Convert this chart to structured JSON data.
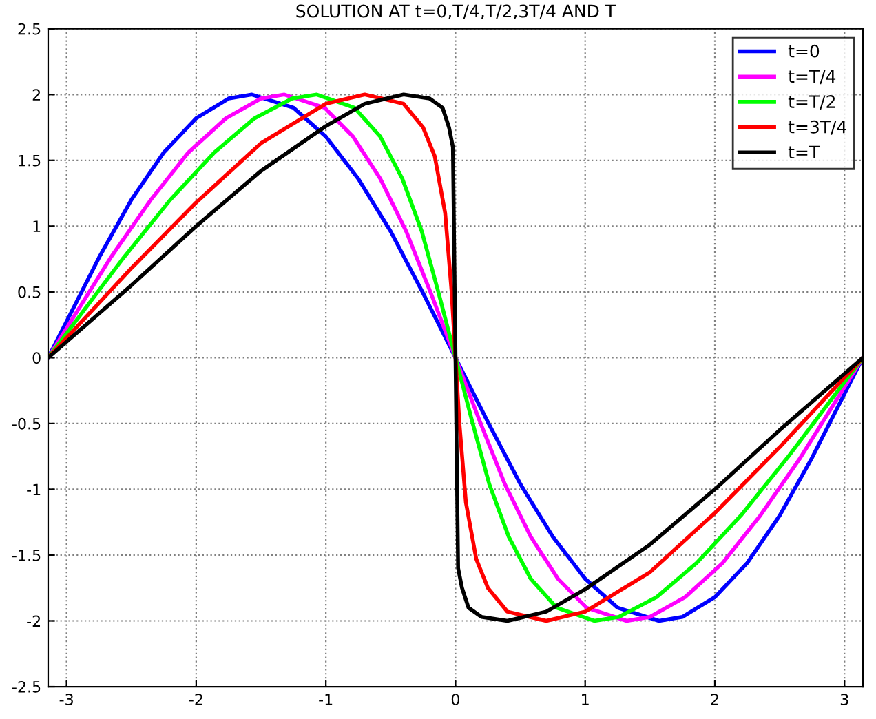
{
  "chart_data": {
    "type": "line",
    "title": "SOLUTION AT t=0,T/4,T/2,3T/4 AND T",
    "xlim": [
      -3.1416,
      3.1416
    ],
    "xticks": [
      -3,
      -2,
      -1,
      0,
      1,
      2,
      3
    ],
    "ylim": [
      -2.5,
      2.5
    ],
    "yticks": [
      -2.5,
      -2,
      -1.5,
      -1,
      -0.5,
      0,
      0.5,
      1,
      1.5,
      2,
      2.5
    ],
    "grid": true,
    "legend": "top right",
    "line_style": "solid",
    "marker": "none",
    "series": [
      {
        "name": "t=0",
        "color": "#0000ff",
        "x": [
          -3.1416,
          -2.75,
          -2.5,
          -2.25,
          -2,
          -1.75,
          -1.57,
          -1.25,
          -1,
          -0.75,
          -0.5,
          -0.25,
          0,
          0.25,
          0.5,
          0.75,
          1,
          1.25,
          1.57,
          1.75,
          2,
          2.25,
          2.5,
          2.75,
          3.1416
        ],
        "values": [
          0,
          0.76,
          1.2,
          1.56,
          1.82,
          1.97,
          2,
          1.9,
          1.68,
          1.36,
          0.96,
          0.49,
          0,
          -0.49,
          -0.96,
          -1.36,
          -1.68,
          -1.9,
          -2,
          -1.97,
          -1.82,
          -1.56,
          -1.2,
          -0.76,
          0
        ]
      },
      {
        "name": "t=T/4",
        "color": "#ff00ff",
        "x": [
          -3.1416,
          -2.66,
          -2.35,
          -2.06,
          -1.77,
          -1.5,
          -1.32,
          -1.01,
          -0.79,
          -0.58,
          -0.38,
          -0.19,
          0,
          0.19,
          0.38,
          0.58,
          0.79,
          1.01,
          1.32,
          1.5,
          1.77,
          2.06,
          2.35,
          2.66,
          3.1416
        ],
        "values": [
          0,
          0.76,
          1.2,
          1.56,
          1.82,
          1.97,
          2,
          1.9,
          1.68,
          1.36,
          0.96,
          0.49,
          0,
          -0.49,
          -0.96,
          -1.36,
          -1.68,
          -1.9,
          -2,
          -1.97,
          -1.82,
          -1.56,
          -1.2,
          -0.76,
          0
        ]
      },
      {
        "name": "t=T/2",
        "color": "#00ff00",
        "x": [
          -3.1416,
          -2.56,
          -2.2,
          -1.86,
          -1.55,
          -1.26,
          -1.07,
          -0.78,
          -0.58,
          -0.41,
          -0.26,
          -0.13,
          0,
          0.13,
          0.26,
          0.41,
          0.58,
          0.78,
          1.07,
          1.26,
          1.55,
          1.86,
          2.2,
          2.56,
          3.1416
        ],
        "values": [
          0,
          0.76,
          1.2,
          1.56,
          1.82,
          1.97,
          2,
          1.9,
          1.68,
          1.36,
          0.96,
          0.49,
          0,
          -0.49,
          -0.96,
          -1.36,
          -1.68,
          -1.9,
          -2,
          -1.97,
          -1.82,
          -1.56,
          -1.2,
          -0.76,
          0
        ]
      },
      {
        "name": "t=3T/4",
        "color": "#ff0000",
        "x": [
          -3.1416,
          -2.5,
          -2,
          -1.5,
          -1,
          -0.7,
          -0.4,
          -0.25,
          -0.16,
          -0.08,
          -0.03,
          0,
          0.03,
          0.08,
          0.16,
          0.25,
          0.4,
          0.7,
          1,
          1.5,
          2,
          2.5,
          3.1416
        ],
        "values": [
          0,
          0.68,
          1.18,
          1.63,
          1.93,
          2,
          1.93,
          1.75,
          1.53,
          1.1,
          0.5,
          0,
          -0.5,
          -1.1,
          -1.53,
          -1.75,
          -1.93,
          -2,
          -1.93,
          -1.63,
          -1.18,
          -0.68,
          0
        ]
      },
      {
        "name": "t=T",
        "color": "#000000",
        "x": [
          -3.1416,
          -2.5,
          -2,
          -1.5,
          -1,
          -0.7,
          -0.4,
          -0.2,
          -0.1,
          -0.05,
          -0.02,
          0,
          0.02,
          0.05,
          0.1,
          0.2,
          0.4,
          0.7,
          1,
          1.5,
          2,
          2.5,
          3.1416
        ],
        "values": [
          0,
          0.55,
          1.0,
          1.42,
          1.76,
          1.93,
          2,
          1.97,
          1.9,
          1.75,
          1.6,
          0,
          -1.6,
          -1.75,
          -1.9,
          -1.97,
          -2,
          -1.93,
          -1.76,
          -1.42,
          -1.0,
          -0.55,
          0
        ]
      }
    ]
  }
}
